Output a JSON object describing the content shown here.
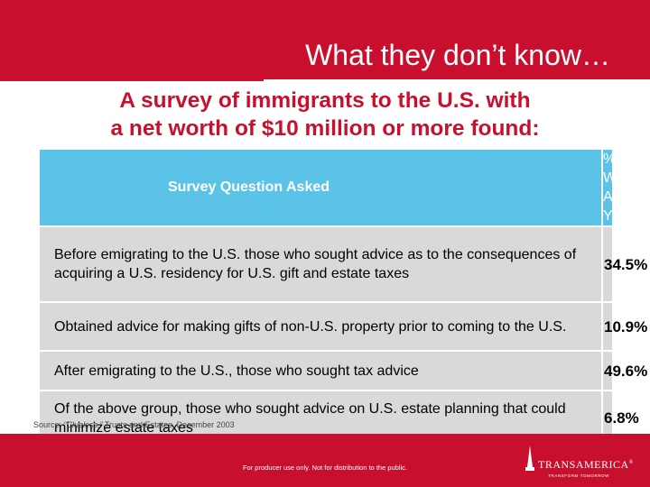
{
  "slide": {
    "title": "What they don’t know…",
    "subtitle_line1": "A survey of immigrants to the U.S. with",
    "subtitle_line2": "a net worth of $10 million or more found:"
  },
  "table": {
    "header_question": "Survey Question Asked",
    "header_percent_line1": "% Who",
    "header_percent_line2": "Answered Yes",
    "rows": [
      {
        "question": "Before emigrating to the U.S. those who sought advice as to the consequences of acquiring a U.S. residency for U.S. gift and estate taxes",
        "percent": "34.5%"
      },
      {
        "question": "Obtained advice for making gifts of non-U.S. property prior to coming to the U.S.",
        "percent": "10.9%"
      },
      {
        "question": "After emigrating to the U.S., those who sought tax advice",
        "percent": "49.6%"
      },
      {
        "question": "Of the above group, those who sought advice on U.S. estate planning that could minimize estate taxes",
        "percent": "6.8%"
      }
    ]
  },
  "source": {
    "prefix": "Source: ",
    "publication": "“Clueless,”",
    "suffix": " Trusts and Estates, December 2003"
  },
  "footer": {
    "disclaimer": "For producer use only. Not for distribution to the public.",
    "brand": "TRANSAMERICA",
    "trademark": "®",
    "tagline": "TRANSFORM TOMORROW"
  },
  "colors": {
    "brand_red": "#c8102e",
    "header_blue": "#5bc3e8",
    "row_gray": "#d9d9d9"
  }
}
